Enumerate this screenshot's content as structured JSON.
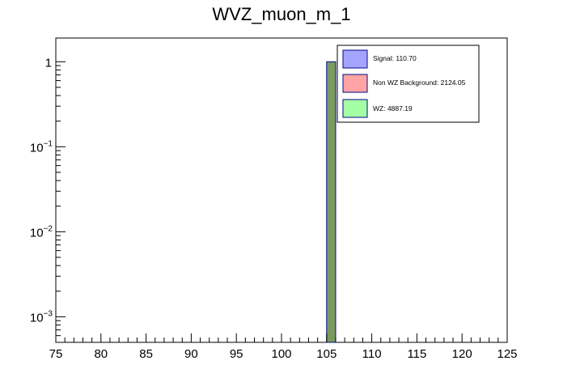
{
  "chart_data": {
    "type": "bar",
    "title": "WVZ_muon_m_1",
    "xlabel": "",
    "ylabel": "",
    "xlim": [
      75,
      125
    ],
    "ylim": [
      0.0005,
      1.9
    ],
    "yscale": "log",
    "bin_width": 1,
    "x_ticks": [
      75,
      80,
      85,
      90,
      95,
      100,
      105,
      110,
      115,
      120,
      125
    ],
    "x_tick_labels": [
      "75",
      "80",
      "85",
      "90",
      "95",
      "100",
      "105",
      "110",
      "115",
      "120",
      "125"
    ],
    "y_ticks": [
      {
        "value": 1,
        "base": "1",
        "exp": ""
      },
      {
        "value": 0.1,
        "base": "10",
        "exp": "−1"
      },
      {
        "value": 0.01,
        "base": "10",
        "exp": "−2"
      },
      {
        "value": 0.001,
        "base": "10",
        "exp": "−3"
      }
    ],
    "bars": [
      {
        "x0": 105,
        "x1": 106,
        "value": 1.0
      }
    ],
    "stack_fill_color": "#7a9a60",
    "legend_position": "top-right",
    "series": [
      {
        "name": "Signal: 110.70",
        "color": "#a4a4fe"
      },
      {
        "name": "Non WZ Background: 2124.05",
        "color": "#fea4a4"
      },
      {
        "name": "WZ: 4887.19",
        "color": "#a4fea4"
      }
    ]
  }
}
